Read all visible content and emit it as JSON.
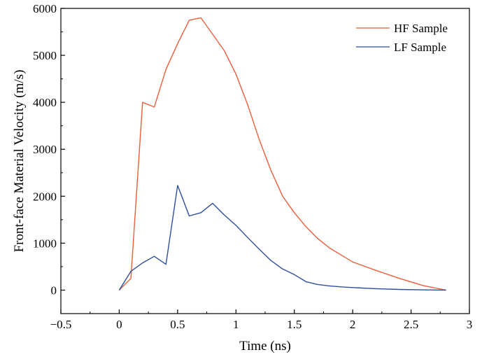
{
  "chart_data": {
    "type": "line",
    "title": "",
    "xlabel": "Time (ns)",
    "ylabel": "Front-face Material Velocity (m/s)",
    "xlim": [
      -0.5,
      3
    ],
    "ylim": [
      -500,
      6000
    ],
    "xticks": [
      -0.5,
      0,
      0.5,
      1,
      1.5,
      2,
      2.5,
      3
    ],
    "xtick_labels": [
      "−0.5",
      "0",
      "0.5",
      "1",
      "1.5",
      "2",
      "2.5",
      "3"
    ],
    "yticks": [
      0,
      1000,
      2000,
      3000,
      4000,
      5000,
      6000
    ],
    "ytick_labels": [
      "0",
      "1000",
      "2000",
      "3000",
      "4000",
      "5000",
      "6000"
    ],
    "grid": false,
    "legend_position": "top-right",
    "series": [
      {
        "name": "HF Sample",
        "color": "#e8603a",
        "x": [
          0,
          0.1,
          0.2,
          0.3,
          0.4,
          0.5,
          0.6,
          0.7,
          0.8,
          0.9,
          1.0,
          1.1,
          1.2,
          1.3,
          1.4,
          1.5,
          1.6,
          1.7,
          1.8,
          1.9,
          2.0,
          2.2,
          2.4,
          2.6,
          2.8
        ],
        "y": [
          0,
          250,
          4000,
          3900,
          4700,
          5250,
          5750,
          5800,
          5450,
          5100,
          4600,
          3950,
          3200,
          2550,
          2000,
          1650,
          1350,
          1100,
          900,
          750,
          600,
          420,
          250,
          100,
          0
        ]
      },
      {
        "name": "LF Sample",
        "color": "#2e4f9c",
        "x": [
          0,
          0.1,
          0.2,
          0.3,
          0.4,
          0.5,
          0.6,
          0.7,
          0.8,
          0.9,
          1.0,
          1.1,
          1.2,
          1.3,
          1.4,
          1.5,
          1.6,
          1.7,
          1.8,
          1.9,
          2.0,
          2.2,
          2.4,
          2.6,
          2.8
        ],
        "y": [
          0,
          400,
          580,
          720,
          550,
          2230,
          1580,
          1650,
          1850,
          1600,
          1380,
          1120,
          870,
          630,
          450,
          330,
          180,
          120,
          90,
          70,
          55,
          30,
          15,
          5,
          0
        ]
      }
    ]
  }
}
